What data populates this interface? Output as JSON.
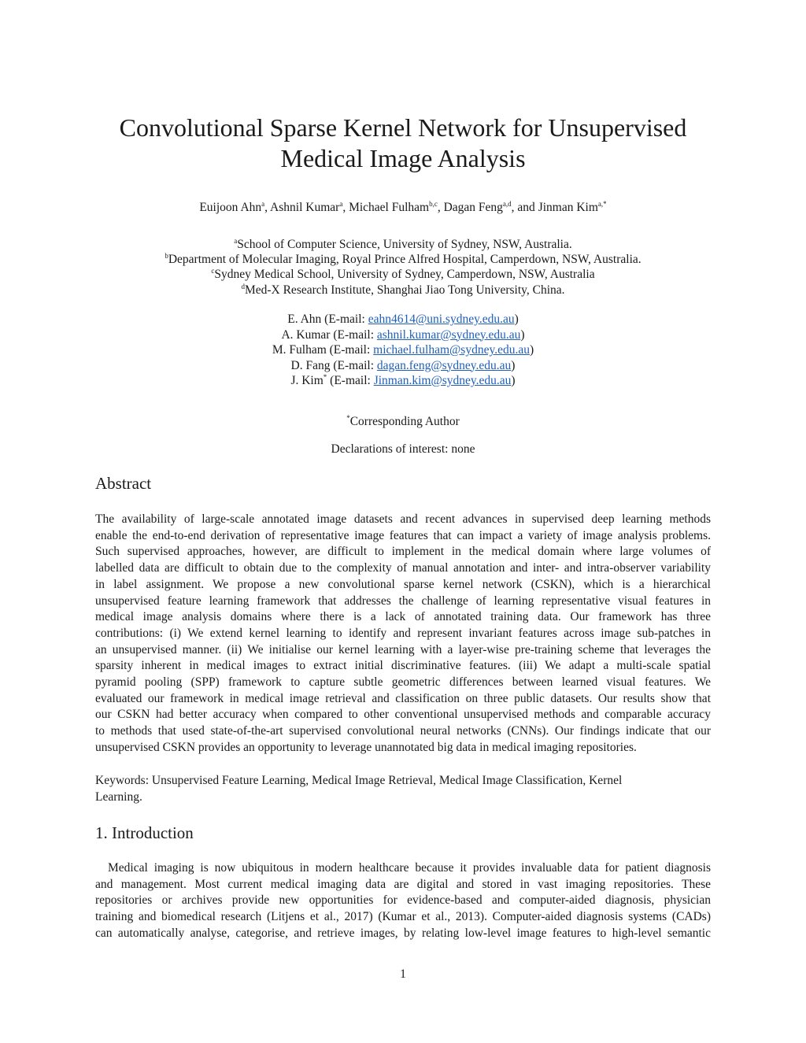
{
  "title": [
    "Convolutional Sparse Kernel Network for Unsupervised",
    "Medical Image Analysis"
  ],
  "authors": [
    {
      "name": "Euijoon Ahn",
      "sup": "a",
      "sep": ", "
    },
    {
      "name": "Ashnil Kumar",
      "sup": "a",
      "sep": ", "
    },
    {
      "name": "Michael Fulham",
      "sup": "b,c",
      "sep": ", "
    },
    {
      "name": "Dagan Feng",
      "sup": "a,d",
      "sep": ", and "
    },
    {
      "name": "Jinman Kim",
      "sup": "a,*",
      "sep": ""
    }
  ],
  "affiliations": [
    {
      "sup": "a",
      "text": "School of Computer Science, University of Sydney, NSW, Australia."
    },
    {
      "sup": "b",
      "text": "Department of Molecular Imaging, Royal Prince Alfred Hospital, Camperdown, NSW, Australia."
    },
    {
      "sup": "c",
      "text": "Sydney Medical School, University of Sydney, Camperdown, NSW, Australia"
    },
    {
      "sup": "d",
      "text": "Med-X Research Institute, Shanghai Jiao Tong University, China."
    }
  ],
  "emails": [
    {
      "name": "E. Ahn",
      "sup": "",
      "label": " (E-mail: ",
      "email": "eahn4614@uni.sydney.edu.au"
    },
    {
      "name": "A. Kumar",
      "sup": "",
      "label": " (E-mail: ",
      "email": "ashnil.kumar@sydney.edu.au"
    },
    {
      "name": "M. Fulham",
      "sup": "",
      "label": " (E-mail: ",
      "email": "michael.fulham@sydney.edu.au"
    },
    {
      "name": "D. Fang",
      "sup": "",
      "label": " (E-mail: ",
      "email": "dagan.feng@sydney.edu.au"
    },
    {
      "name": "J. Kim",
      "sup": "*",
      "label": " (E-mail: ",
      "email": "Jinman.kim@sydney.edu.au"
    }
  ],
  "corresponding": {
    "sup": "*",
    "text": "Corresponding Author"
  },
  "declarations": "Declarations of interest: none",
  "abstract": {
    "heading": "Abstract",
    "lines": [
      "The availability of large-scale annotated image datasets and recent advances in supervised deep learning methods",
      "enable the end-to-end derivation of representative image features that can impact a variety of image analysis problems.",
      "Such supervised approaches, however, are difficult to implement in the medical domain where large volumes of",
      "labelled data are difficult to obtain due to the complexity of manual annotation and inter- and intra-observer variability",
      "in label assignment. We propose a new convolutional sparse kernel network (CSKN), which is a hierarchical",
      "unsupervised feature learning framework that addresses the challenge of learning representative visual features in",
      "medical image analysis domains where there is a lack of annotated training data. Our framework has three",
      "contributions: (i) We extend kernel learning to identify and represent invariant features across image sub-patches in",
      "an unsupervised manner. (ii) We initialise our kernel learning with a layer-wise pre-training scheme that leverages the",
      "sparsity inherent in medical images to extract initial discriminative features. (iii) We adapt a multi-scale spatial",
      "pyramid pooling (SPP) framework to capture subtle geometric differences between learned visual features. We",
      "evaluated our framework in medical image retrieval and classification on three public datasets. Our results show that",
      "our CSKN had better accuracy when compared to other conventional unsupervised methods and comparable accuracy",
      "to methods that used state-of-the-art supervised convolutional neural networks (CNNs). Our findings indicate that our",
      "unsupervised CSKN provides an opportunity to leverage unannotated big data in medical imaging repositories."
    ]
  },
  "keywords": {
    "lines": [
      "Keywords: Unsupervised Feature Learning, Medical Image Retrieval, Medical Image Classification, Kernel",
      "Learning."
    ]
  },
  "introduction": {
    "heading": "1.  Introduction",
    "lines": [
      "Medical imaging is now ubiquitous in modern healthcare because it provides invaluable data for patient diagnosis",
      "and management. Most current medical imaging data are digital and stored in vast imaging repositories. These",
      "repositories or archives provide new opportunities for evidence-based and computer-aided diagnosis, physician",
      "training and biomedical research (Litjens et al., 2017) (Kumar et al., 2013). Computer-aided diagnosis systems (CADs)",
      "can automatically analyse, categorise, and retrieve images, by relating low-level image features to high-level semantic"
    ]
  },
  "page_number": "1",
  "colors": {
    "link": "#1f5fb8",
    "text": "#1a1a1a"
  }
}
